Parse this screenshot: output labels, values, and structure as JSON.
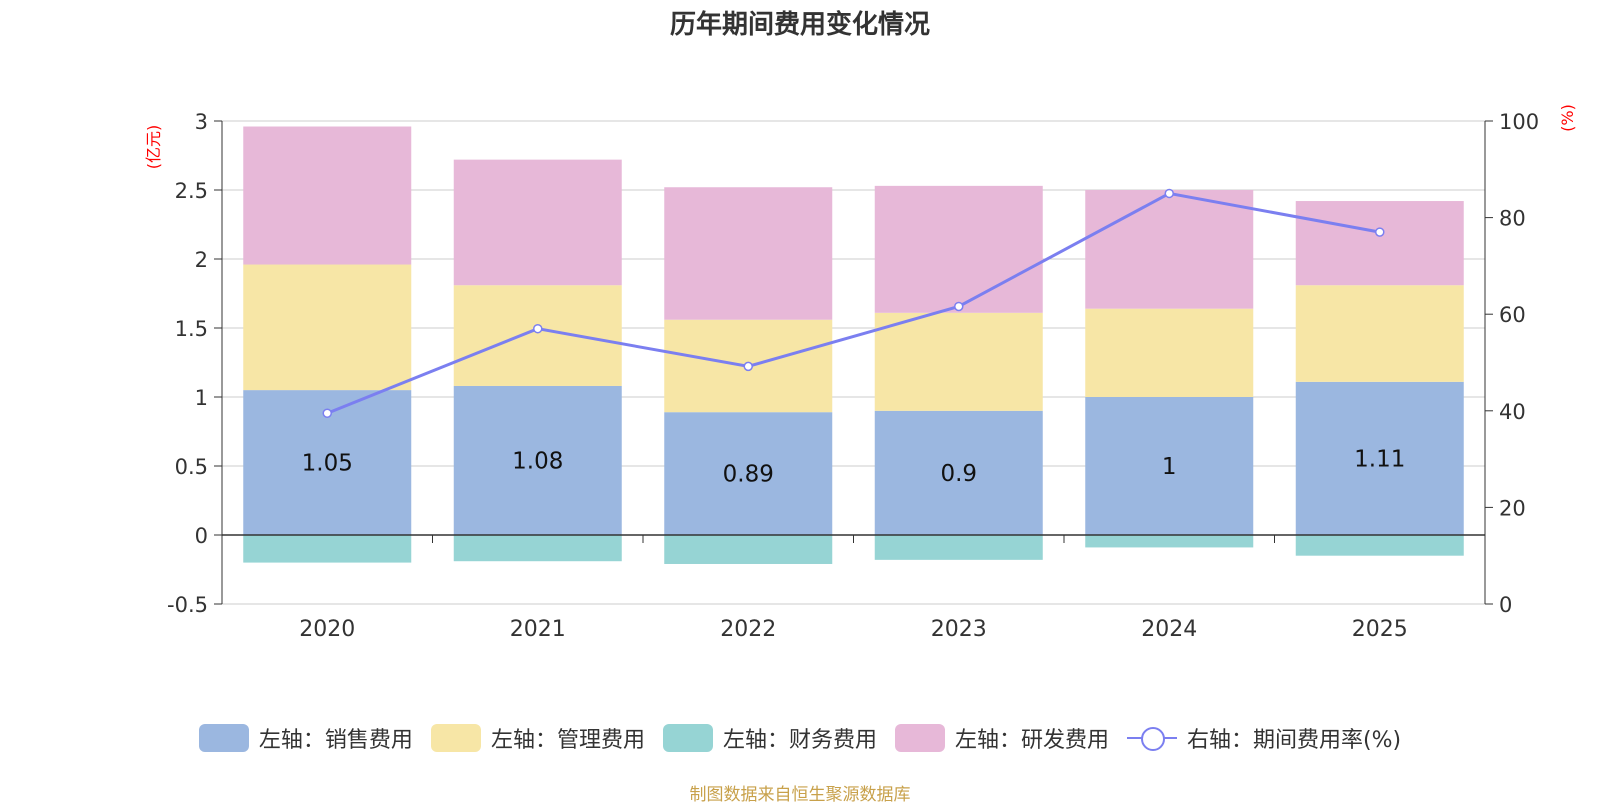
{
  "chart_data": {
    "type": "bar",
    "title": "历年期间费用变化情况",
    "categories": [
      "2020",
      "2021",
      "2022",
      "2023",
      "2024",
      "2025"
    ],
    "left_axis": {
      "label": "(亿元)",
      "ylim": [
        -0.5,
        3
      ],
      "ticks": [
        -0.5,
        0,
        0.5,
        1,
        1.5,
        2,
        2.5,
        3
      ],
      "tick_labels": [
        "-0.5",
        "0",
        "0.5",
        "1",
        "1.5",
        "2",
        "2.5",
        "3"
      ]
    },
    "right_axis": {
      "label": "(%)",
      "ylim": [
        0,
        100
      ],
      "ticks": [
        0,
        20,
        40,
        60,
        80,
        100
      ],
      "tick_labels": [
        "0",
        "20",
        "40",
        "60",
        "80",
        "100"
      ]
    },
    "series": [
      {
        "name": "左轴：销售费用",
        "axis": "left",
        "stack": true,
        "color": "#9bb7e0",
        "values": [
          1.05,
          1.08,
          0.89,
          0.9,
          1,
          1.11
        ],
        "labels": [
          "1.05",
          "1.08",
          "0.89",
          "0.9",
          "1",
          "1.11"
        ]
      },
      {
        "name": "左轴：管理费用",
        "axis": "left",
        "stack": true,
        "color": "#f7e6a6",
        "values": [
          0.91,
          0.73,
          0.67,
          0.71,
          0.64,
          0.7
        ]
      },
      {
        "name": "左轴：财务费用",
        "axis": "left",
        "stack": true,
        "color": "#96d4d4",
        "values": [
          -0.2,
          -0.19,
          -0.21,
          -0.18,
          -0.09,
          -0.15
        ]
      },
      {
        "name": "左轴：研发费用",
        "axis": "left",
        "stack": true,
        "color": "#e7b8d8",
        "values": [
          1.0,
          0.91,
          0.96,
          0.92,
          0.86,
          0.61
        ]
      },
      {
        "name": "右轴：期间费用率(%)",
        "axis": "right",
        "type": "line",
        "color": "#7b7ff0",
        "values": [
          39.5,
          57,
          49.2,
          61.6,
          85,
          77
        ]
      }
    ],
    "legend_position": "bottom",
    "grid": true
  },
  "source": "制图数据来自恒生聚源数据库"
}
